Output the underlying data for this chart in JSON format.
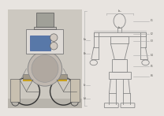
{
  "background_color": "#e8e4e0",
  "line_color": "#888880",
  "line_width": 0.5,
  "text_color": "#444440",
  "font_size": 3.5,
  "lc2": "#888888",
  "lw2": 0.6
}
